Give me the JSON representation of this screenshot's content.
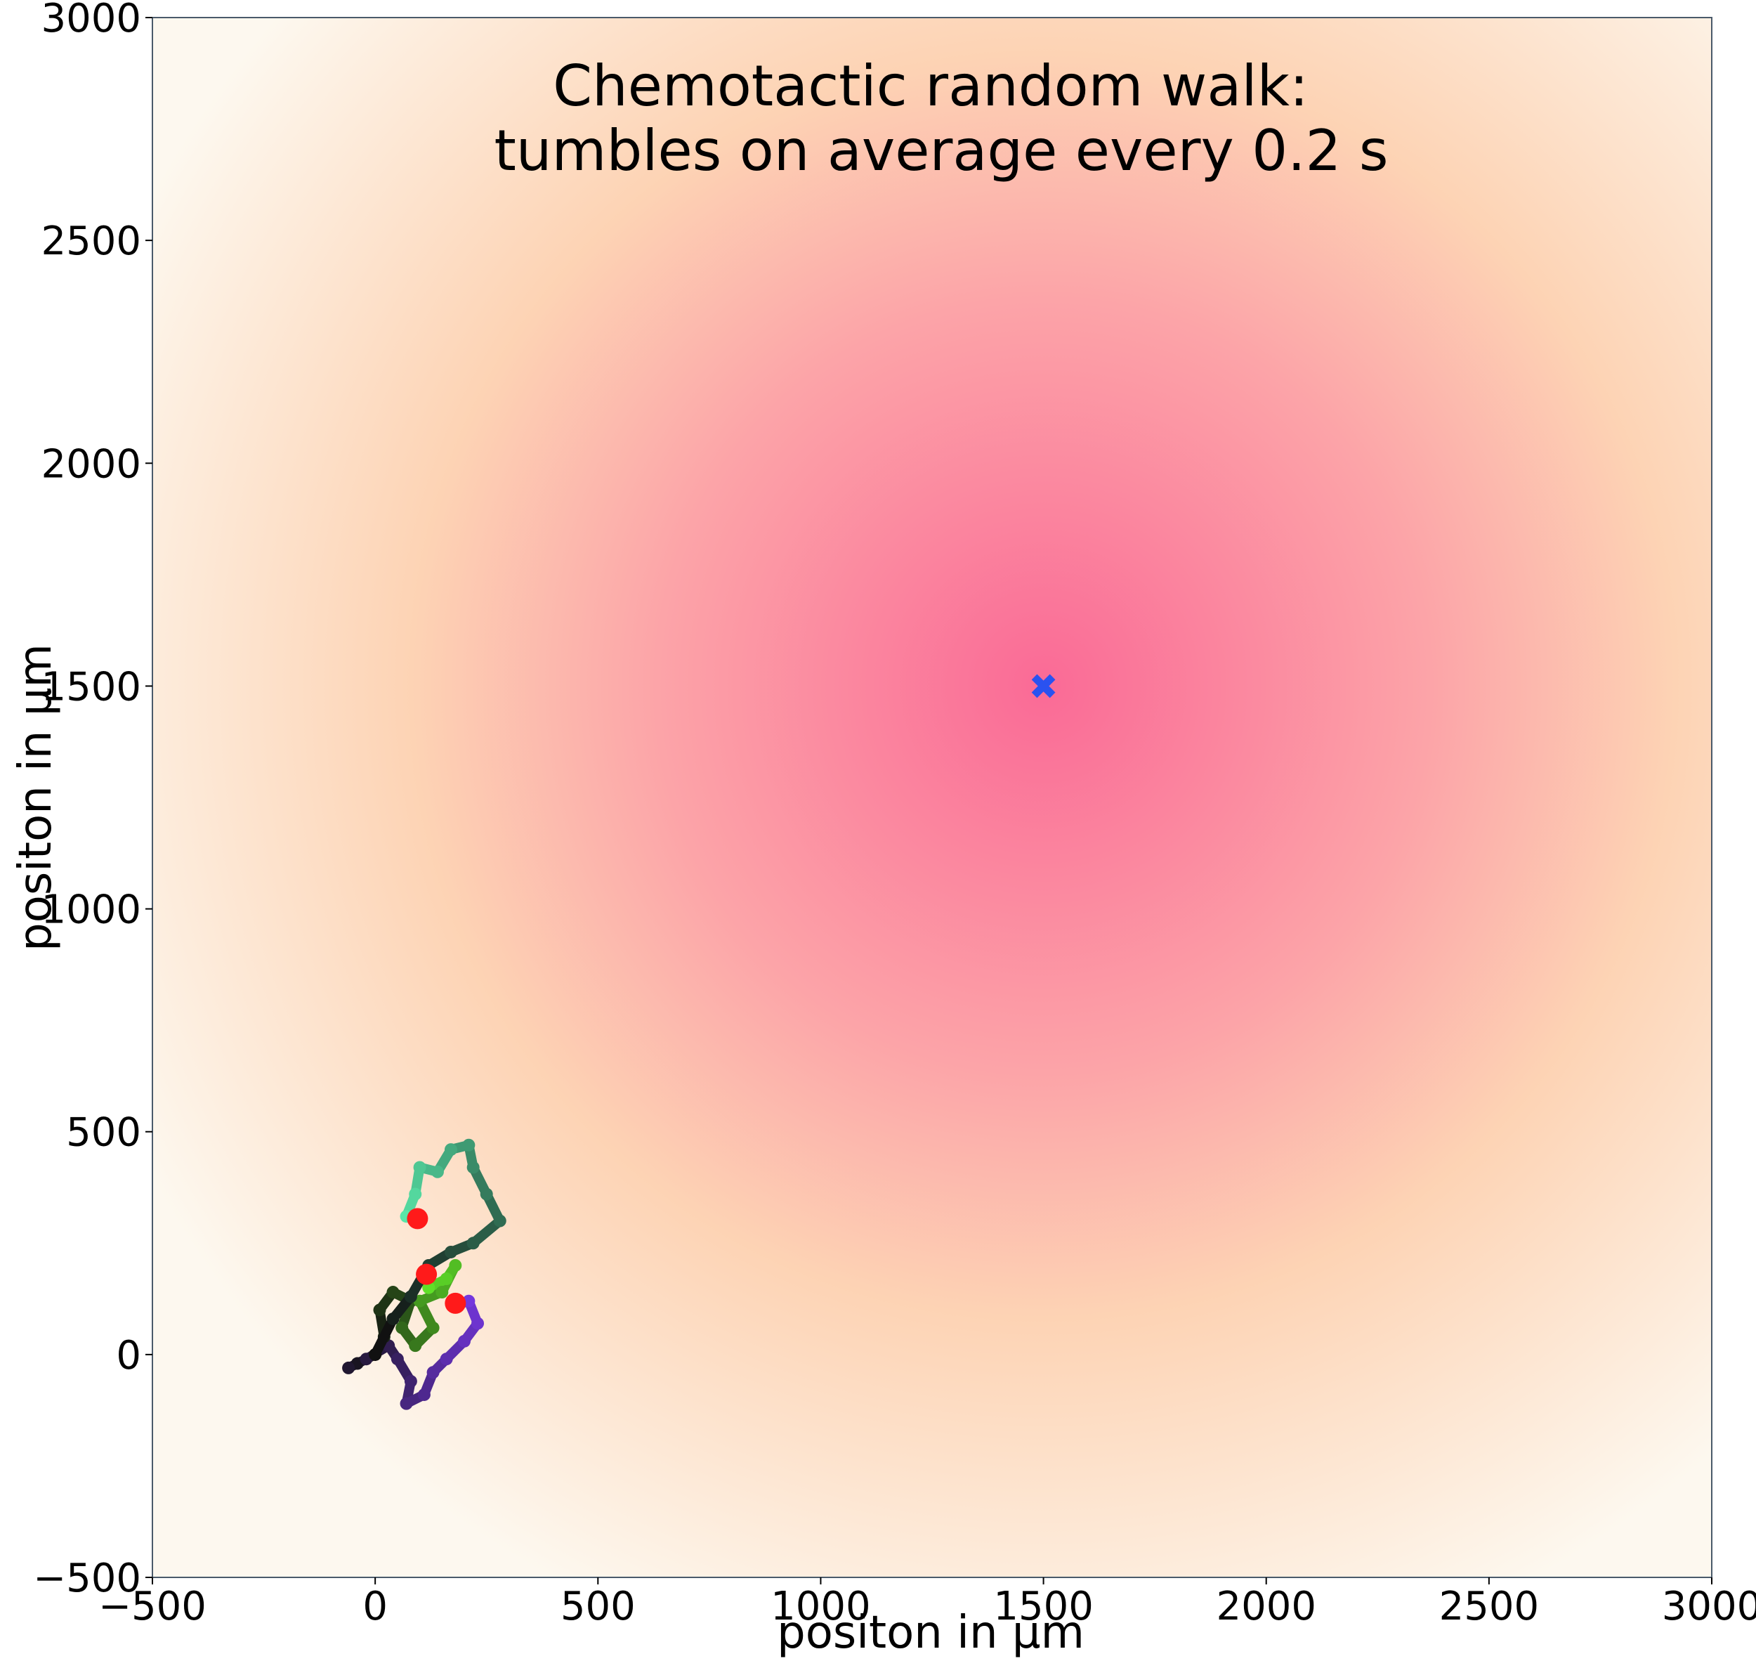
{
  "chart_data": {
    "type": "scatter",
    "title_lines": [
      "Chemotactic random walk:",
      "tumbles on average every 0.2 s"
    ],
    "xlabel": "positon in μm",
    "ylabel": "positon in μm",
    "xlim": [
      -500,
      3000
    ],
    "ylim": [
      -500,
      3000
    ],
    "xticks": [
      -500,
      0,
      500,
      1000,
      1500,
      2000,
      2500,
      3000
    ],
    "yticks": [
      -500,
      0,
      500,
      1000,
      1500,
      2000,
      2500,
      3000
    ],
    "xtick_labels": [
      "−500",
      "0",
      "500",
      "1000",
      "1500",
      "2000",
      "2500",
      "3000"
    ],
    "ytick_labels": [
      "−500",
      "0",
      "500",
      "1000",
      "1500",
      "2000",
      "2500",
      "3000"
    ],
    "grid": false,
    "background_field": {
      "description": "attractant concentration gradient",
      "center": [
        1500,
        1500
      ],
      "colors": [
        "#fa6a96",
        "#fca4a8",
        "#fdd3b4",
        "#fdf8ef"
      ]
    },
    "target": {
      "x": 1500,
      "y": 1500,
      "marker": "X",
      "color": "#2a52f0"
    },
    "walks": [
      {
        "color_start": "#111111",
        "color_end": "#7c3aed",
        "points": [
          [
            0,
            0
          ],
          [
            -40,
            -20
          ],
          [
            -60,
            -30
          ],
          [
            -20,
            -10
          ],
          [
            30,
            20
          ],
          [
            50,
            -10
          ],
          [
            80,
            -60
          ],
          [
            70,
            -110
          ],
          [
            110,
            -90
          ],
          [
            130,
            -40
          ],
          [
            160,
            -10
          ],
          [
            200,
            30
          ],
          [
            230,
            70
          ],
          [
            210,
            120
          ],
          [
            180,
            110
          ]
        ]
      },
      {
        "color_start": "#111111",
        "color_end": "#66f02a",
        "points": [
          [
            0,
            0
          ],
          [
            20,
            40
          ],
          [
            10,
            100
          ],
          [
            40,
            140
          ],
          [
            80,
            120
          ],
          [
            60,
            60
          ],
          [
            90,
            20
          ],
          [
            130,
            60
          ],
          [
            100,
            120
          ],
          [
            150,
            140
          ],
          [
            180,
            200
          ],
          [
            160,
            170
          ],
          [
            120,
            150
          ],
          [
            110,
            180
          ]
        ]
      },
      {
        "color_start": "#111111",
        "color_end": "#5ef5b4",
        "points": [
          [
            0,
            0
          ],
          [
            40,
            80
          ],
          [
            80,
            130
          ],
          [
            120,
            200
          ],
          [
            170,
            230
          ],
          [
            220,
            250
          ],
          [
            280,
            300
          ],
          [
            250,
            360
          ],
          [
            220,
            420
          ],
          [
            210,
            470
          ],
          [
            170,
            460
          ],
          [
            140,
            410
          ],
          [
            100,
            420
          ],
          [
            90,
            360
          ],
          [
            70,
            310
          ],
          [
            90,
            300
          ]
        ]
      }
    ],
    "final_positions": [
      {
        "x": 95,
        "y": 305
      },
      {
        "x": 115,
        "y": 180
      },
      {
        "x": 180,
        "y": 115
      }
    ],
    "final_marker_color": "#ff1a1a"
  }
}
